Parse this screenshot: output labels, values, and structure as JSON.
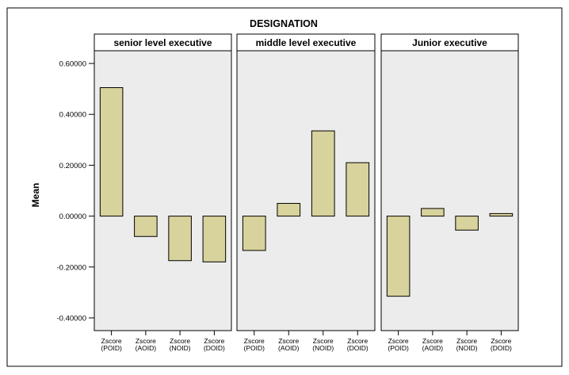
{
  "chart_data": {
    "type": "bar",
    "title": "DESIGNATION",
    "ylabel": "Mean",
    "ylim": [
      -0.45,
      0.65
    ],
    "yticks": [
      0.6,
      0.4,
      0.2,
      0.0,
      -0.2,
      -0.4
    ],
    "ytick_labels": [
      "0.60000",
      "0.40000",
      "0.20000",
      "0.00000",
      "-0.20000",
      "-0.40000"
    ],
    "categories": [
      [
        "Zscore",
        "(POID)"
      ],
      [
        "Zscore",
        "(AOID)"
      ],
      [
        "Zscore",
        "(NOID)"
      ],
      [
        "Zscore",
        "(DOID)"
      ]
    ],
    "panels": [
      {
        "name": "senior level executive",
        "values": [
          0.505,
          -0.08,
          -0.175,
          -0.18
        ]
      },
      {
        "name": "middle level executive",
        "values": [
          -0.135,
          0.05,
          0.335,
          0.21
        ]
      },
      {
        "name": "Junior executive",
        "values": [
          -0.315,
          0.03,
          -0.055,
          0.01
        ]
      }
    ],
    "bar_color": "#d8d29c",
    "panel_fill": "#ececec",
    "grid": false
  }
}
